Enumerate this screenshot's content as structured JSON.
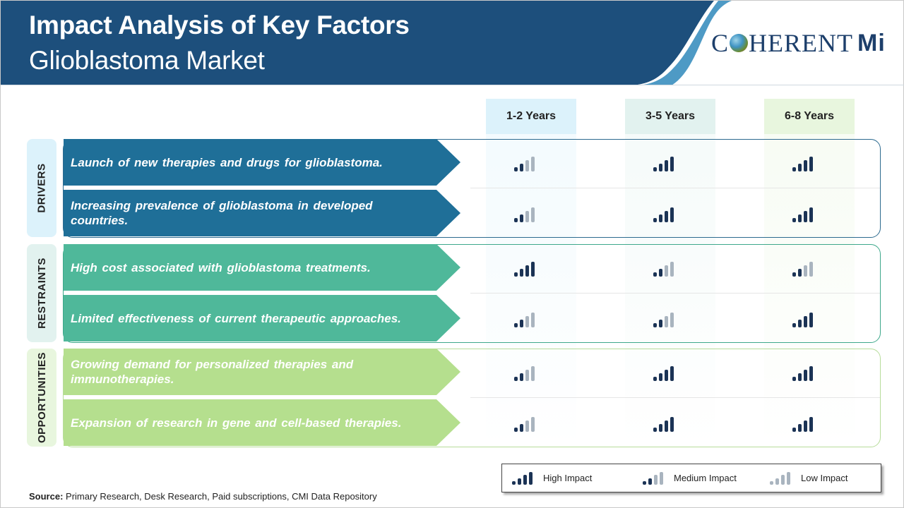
{
  "header": {
    "title": "Impact Analysis of Key Factors",
    "subtitle": "Glioblastoma Market",
    "logo_left": "C",
    "logo_right": "HERENT",
    "logo_mi": "Mi",
    "colors": {
      "band": "#1d4f7c",
      "accent": "#3b8fbf"
    }
  },
  "columns": [
    "1-2 Years",
    "3-5 Years",
    "6-8 Years"
  ],
  "column_colors": [
    "#dcf2fb",
    "#e2f2ef",
    "#e8f6de"
  ],
  "groups": [
    {
      "label": "DRIVERS",
      "color": "#1f6f98",
      "label_bg": "#dcf2fb",
      "outline": "#2c6a8f",
      "rows": [
        {
          "text": "Launch of new therapies and drugs for glioblastoma.",
          "impact": [
            "medium",
            "high",
            "high"
          ]
        },
        {
          "text": "Increasing prevalence of glioblastoma in developed countries.",
          "impact": [
            "medium",
            "high",
            "high"
          ]
        }
      ]
    },
    {
      "label": "RESTRAINTS",
      "color": "#4fb89a",
      "label_bg": "#e2f2ef",
      "outline": "#3ea88b",
      "rows": [
        {
          "text": "High cost associated with glioblastoma treatments.",
          "impact": [
            "high",
            "medium",
            "medium"
          ]
        },
        {
          "text": "Limited effectiveness of current therapeutic approaches.",
          "impact": [
            "medium",
            "medium",
            "high"
          ]
        }
      ]
    },
    {
      "label": "OPPORTUNITIES",
      "color": "#b5df8e",
      "label_bg": "#e8f6de",
      "outline": "#b7dc9a",
      "rows": [
        {
          "text": "Growing demand for personalized therapies and immunotherapies.",
          "impact": [
            "medium",
            "high",
            "high"
          ]
        },
        {
          "text": "Expansion of research in gene and cell-based therapies.",
          "impact": [
            "medium",
            "high",
            "high"
          ]
        }
      ]
    }
  ],
  "legend": {
    "high": "High Impact",
    "medium": "Medium Impact",
    "low": "Low Impact"
  },
  "bar_colors": {
    "dark": "#1b3355",
    "grey": "#a9b4bf"
  },
  "source": {
    "label": "Source:",
    "text": " Primary Research, Desk Research, Paid subscriptions, CMI Data Repository"
  }
}
